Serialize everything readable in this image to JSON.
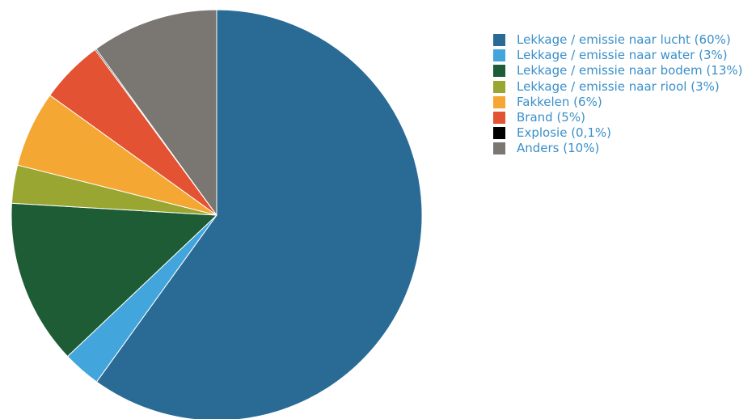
{
  "chart_data": {
    "type": "pie",
    "start_angle_deg": 0,
    "direction": "clockwise",
    "legend_position": "right",
    "legend_text_color": "#3a8fc9",
    "slices": [
      {
        "label": "Lekkage / emissie naar lucht (60%)",
        "value": 60,
        "color": "#2a6b96"
      },
      {
        "label": "Lekkage / emissie naar water (3%)",
        "value": 3,
        "color": "#42a5dc"
      },
      {
        "label": "Lekkage / emissie naar bodem (13%)",
        "value": 13,
        "color": "#1d5c34"
      },
      {
        "label": "Lekkage / emissie naar riool (3%)",
        "value": 3,
        "color": "#9aa632"
      },
      {
        "label": "Fakkelen (6%)",
        "value": 6,
        "color": "#f5a733"
      },
      {
        "label": "Brand (5%)",
        "value": 5,
        "color": "#e35232"
      },
      {
        "label": "Explosie (0,1%)",
        "value": 0.1,
        "color": "#000000"
      },
      {
        "label": "Anders (10%)",
        "value": 10,
        "color": "#7a7672"
      }
    ]
  }
}
